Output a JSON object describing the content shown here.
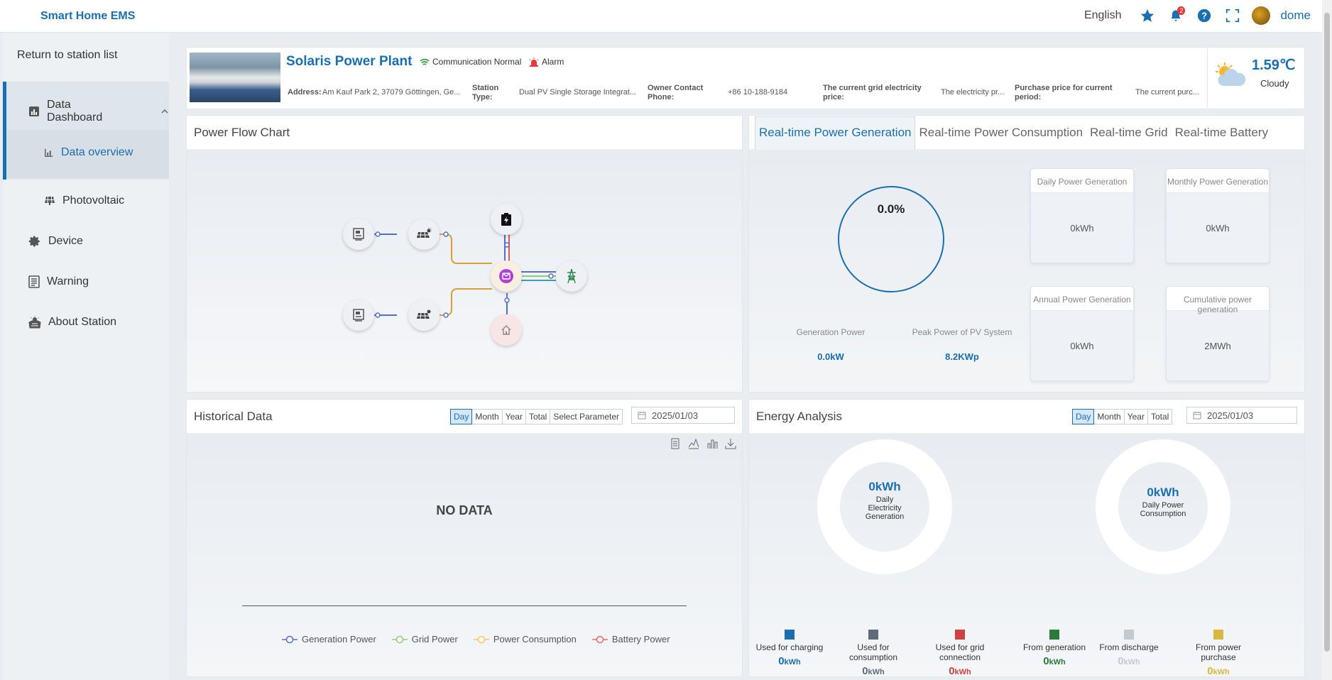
{
  "app": {
    "brand": "Smart Home EMS",
    "language": "English",
    "notification_count": "2",
    "username": "dome"
  },
  "sidebar": {
    "back": "Return to station list",
    "items": [
      {
        "label": "Data Dashboard"
      },
      {
        "label": "Data overview"
      },
      {
        "label": "Photovoltaic"
      },
      {
        "label": "Device"
      },
      {
        "label": "Warning"
      },
      {
        "label": "About Station"
      }
    ]
  },
  "station": {
    "name": "Solaris Power Plant",
    "comm_status": "Communication Normal",
    "alarm": "Alarm",
    "address_label": "Address:",
    "address": "Am Kauf Park 2, 37079 Göttingen, Ge...",
    "type_label": "Station Type:",
    "type": "Dual PV Single Storage Integrat...",
    "phone_label": "Owner Contact Phone:",
    "phone": "+86 10-188-9184",
    "grid_price_label": "The current grid electricity price:",
    "grid_price": "The electricity pr...",
    "purchase_price_label": "Purchase price for current period:",
    "purchase_price": "The current purc..."
  },
  "weather": {
    "temp": "1.59℃",
    "condition": "Cloudy"
  },
  "power_flow": {
    "title": "Power Flow Chart"
  },
  "realtime": {
    "tabs": [
      "Real-time Power Generation",
      "Real-time Power Consumption",
      "Real-time Grid",
      "Real-time Battery"
    ],
    "percent": "0.0%",
    "percent_value": 0.0,
    "gen_power_label": "Generation Power",
    "gen_power": "0.0kW",
    "peak_label": "Peak Power of PV System",
    "peak": "8.2KWp",
    "cards": [
      {
        "title": "Daily Power Generation",
        "value": "0kWh"
      },
      {
        "title": "Monthly Power Generation",
        "value": "0kWh"
      },
      {
        "title": "Annual Power Generation",
        "value": "0kWh"
      },
      {
        "title": "Cumulative power generation",
        "value": "2MWh"
      }
    ]
  },
  "history": {
    "title": "Historical Data",
    "periods": [
      "Day",
      "Month",
      "Year",
      "Total",
      "Select Parameter"
    ],
    "date": "2025/01/03",
    "no_data": "NO DATA",
    "legend": [
      {
        "label": "Generation Power",
        "color": "#5470c6"
      },
      {
        "label": "Grid Power",
        "color": "#91cc75"
      },
      {
        "label": "Power Consumption",
        "color": "#fac858"
      },
      {
        "label": "Battery Power",
        "color": "#ee6666"
      }
    ]
  },
  "energy": {
    "title": "Energy Analysis",
    "periods": [
      "Day",
      "Month",
      "Year",
      "Total"
    ],
    "date": "2025/01/03",
    "gen_value": "0kWh",
    "gen_label": "Daily Electricity Generation",
    "cons_value": "0kWh",
    "cons_label": "Daily Power Consumption",
    "legend": [
      {
        "label": "Used for charging",
        "value": "0",
        "unit": "kWh",
        "color": "#1a6fb0"
      },
      {
        "label": "Used for consumption",
        "value": "0",
        "unit": "kWh",
        "color": "#5f6b7a"
      },
      {
        "label": "Used for grid connection",
        "value": "0",
        "unit": "kWh",
        "color": "#d04040"
      },
      {
        "label": "From generation",
        "value": "0",
        "unit": "kWh",
        "color": "#2a7a3a"
      },
      {
        "label": "From discharge",
        "value": "0",
        "unit": "kWh",
        "color": "#c4c9cf"
      },
      {
        "label": "From power purchase",
        "value": "0",
        "unit": "kWh",
        "color": "#d8b840"
      }
    ]
  }
}
